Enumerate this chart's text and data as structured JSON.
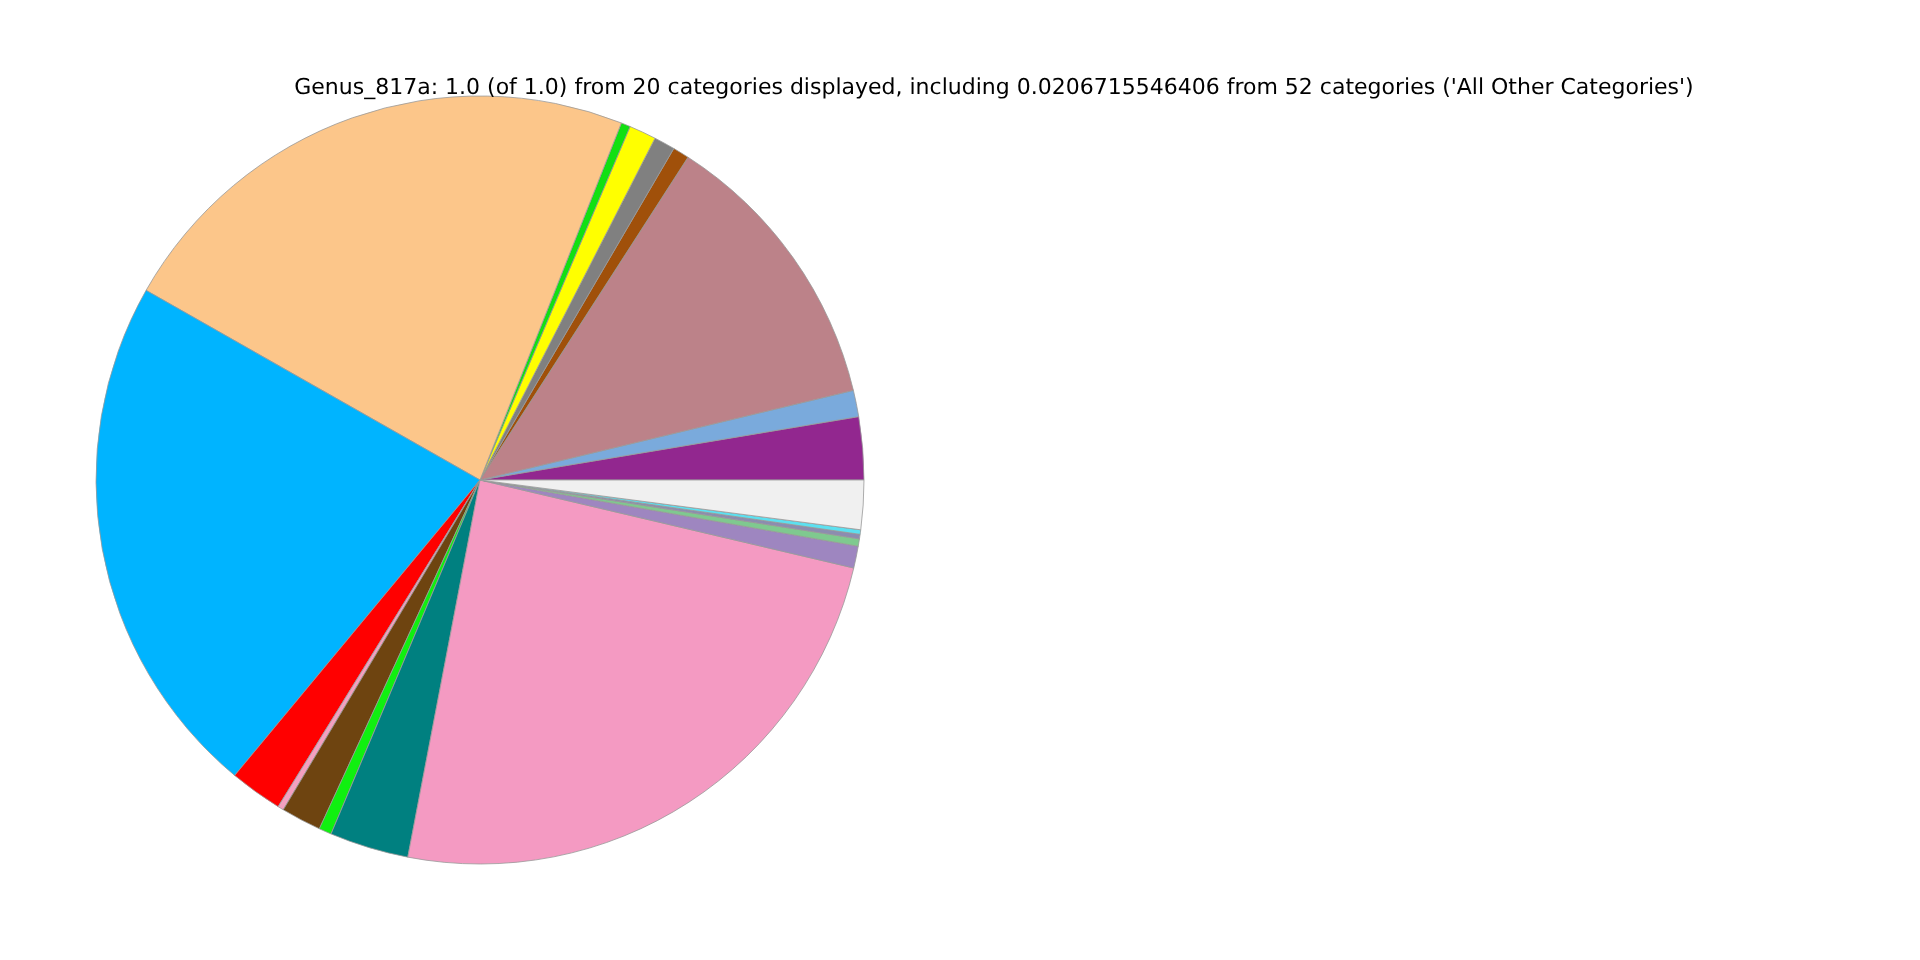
{
  "chart_data": {
    "type": "pie",
    "title": "Genus_817a: 1.0 (of 1.0) from 20 categories displayed, including 0.0206715546406 from 52 categories ('All Other Categories')",
    "categories": [
      null,
      null,
      null,
      null,
      null,
      null,
      null,
      null,
      null,
      null,
      null,
      null,
      null,
      null,
      null,
      null,
      null,
      null,
      null,
      null
    ],
    "values": [
      2.64,
      1.11,
      12.14,
      0.69,
      0.89,
      1.14,
      0.39,
      22.78,
      22.19,
      2.22,
      0.25,
      1.69,
      0.53,
      3.33,
      24.33,
      0.92,
      0.31,
      0.19,
      0.19,
      2.07
    ],
    "colors": [
      "#92278f",
      "#7aaadc",
      "#bc8289",
      "#a0500a",
      "#808080",
      "#ffff00",
      "#12e012",
      "#fcc68a",
      "#00b4ff",
      "#ff0000",
      "#f4a0c0",
      "#6e4410",
      "#10f010",
      "#008080",
      "#f49ac2",
      "#9e86c0",
      "#7fc98f",
      "#8c8cb0",
      "#5ce0f0",
      "#f0f0f0"
    ]
  }
}
